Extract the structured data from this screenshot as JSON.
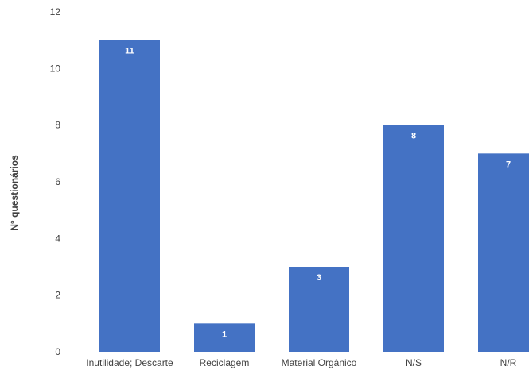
{
  "chart_data": {
    "type": "bar",
    "categories": [
      "Inutilidade; Descarte",
      "Reciclagem",
      "Material Orgânico",
      "N/S",
      "N/R"
    ],
    "values": [
      11,
      1,
      3,
      8,
      7
    ],
    "data_labels": [
      "11",
      "1",
      "3",
      "8",
      "7"
    ],
    "title": "",
    "xlabel": "",
    "ylabel": "N° questionários",
    "ylim": [
      0,
      12
    ],
    "yticks": [
      0,
      2,
      4,
      6,
      8,
      10,
      12
    ],
    "ytick_labels": [
      "0",
      "2",
      "4",
      "6",
      "8",
      "10",
      "12"
    ],
    "grid": false,
    "legend": "none",
    "bar_color": "#4472C4",
    "label_color": "#FFFFFF"
  }
}
